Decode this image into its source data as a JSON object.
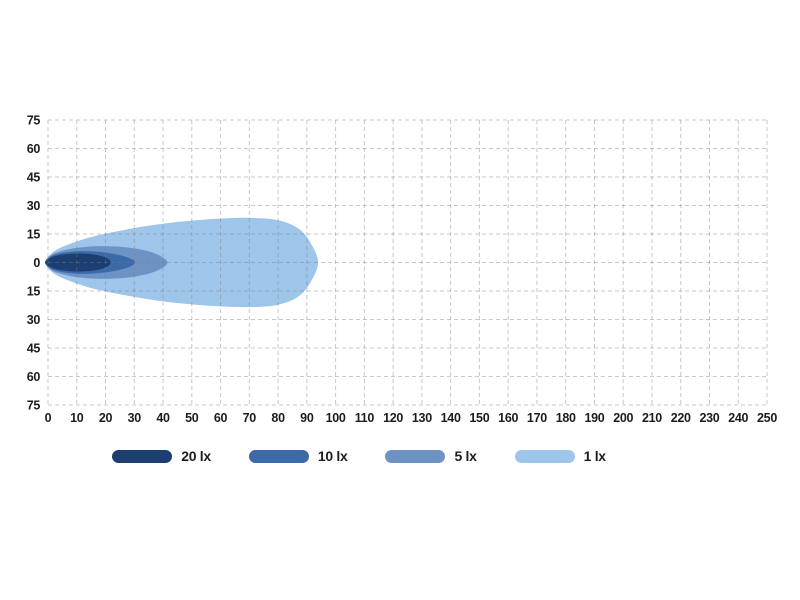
{
  "chart_data": {
    "type": "area",
    "title": "",
    "xlabel": "",
    "ylabel": "",
    "unit": "lx",
    "x_range": [
      0,
      250
    ],
    "y_range": [
      -75,
      75
    ],
    "x_ticks": [
      0,
      10,
      20,
      30,
      40,
      50,
      60,
      70,
      80,
      90,
      100,
      110,
      120,
      130,
      140,
      150,
      160,
      170,
      180,
      190,
      200,
      210,
      220,
      230,
      240,
      250
    ],
    "y_tick_values": [
      75,
      60,
      45,
      30,
      15,
      0,
      -15,
      -30,
      -45,
      -60,
      -75
    ],
    "y_tick_labels": [
      "75",
      "60",
      "45",
      "30",
      "15",
      "0",
      "15",
      "30",
      "45",
      "60",
      "75"
    ],
    "grid": {
      "on": true,
      "style": "dashed",
      "color_on_white": "#cccccc"
    },
    "legend_position": "bottom",
    "series": [
      {
        "name": "1 lx",
        "value_lx": 1,
        "color": "#9ec5ea",
        "reach_m": 94,
        "max_half_width_m": 23.5,
        "contour": [
          [
            -1,
            0
          ],
          [
            1,
            4.5
          ],
          [
            4,
            7.5
          ],
          [
            8,
            10
          ],
          [
            14,
            13
          ],
          [
            20,
            15.2
          ],
          [
            28,
            17.6
          ],
          [
            36,
            19.6
          ],
          [
            44,
            21.2
          ],
          [
            52,
            22.3
          ],
          [
            60,
            23.1
          ],
          [
            68,
            23.5
          ],
          [
            75,
            23.2
          ],
          [
            80,
            22.2
          ],
          [
            84,
            20.4
          ],
          [
            87.5,
            17.4
          ],
          [
            90,
            13.4
          ],
          [
            92,
            8.4
          ],
          [
            93.4,
            4
          ],
          [
            93.9,
            0
          ]
        ]
      },
      {
        "name": "5 lx",
        "value_lx": 5,
        "color": "#6d93c4",
        "reach_m": 41.5,
        "max_half_width_m": 8.6,
        "contour": [
          [
            -1,
            0
          ],
          [
            1,
            3.8
          ],
          [
            4,
            5.8
          ],
          [
            8,
            7.2
          ],
          [
            12,
            8.0
          ],
          [
            16,
            8.5
          ],
          [
            20,
            8.6
          ],
          [
            25,
            8.3
          ],
          [
            30,
            7.4
          ],
          [
            35,
            5.9
          ],
          [
            38.5,
            3.9
          ],
          [
            40.8,
            1.7
          ],
          [
            41.5,
            0
          ]
        ]
      },
      {
        "name": "10 lx",
        "value_lx": 10,
        "color": "#3c69a7",
        "reach_m": 30.3,
        "max_half_width_m": 6.0,
        "contour": [
          [
            -1,
            0
          ],
          [
            1,
            3.2
          ],
          [
            4,
            4.8
          ],
          [
            8,
            5.7
          ],
          [
            12,
            6.0
          ],
          [
            16,
            5.8
          ],
          [
            20,
            5.2
          ],
          [
            24,
            4.2
          ],
          [
            27.5,
            2.8
          ],
          [
            29.5,
            1.4
          ],
          [
            30.3,
            0
          ]
        ]
      },
      {
        "name": "20 lx",
        "value_lx": 20,
        "color": "#1d3e70",
        "reach_m": 21.8,
        "max_half_width_m": 4.7,
        "contour": [
          [
            -1,
            0
          ],
          [
            1,
            2.6
          ],
          [
            4,
            3.9
          ],
          [
            8,
            4.6
          ],
          [
            12,
            4.7
          ],
          [
            16,
            4.2
          ],
          [
            19,
            3.2
          ],
          [
            21,
            1.8
          ],
          [
            21.8,
            0
          ]
        ]
      }
    ],
    "legend": [
      {
        "label": "20 lx",
        "color": "#1d3e70"
      },
      {
        "label": "10 lx",
        "color": "#3c69a7"
      },
      {
        "label": "5 lx",
        "color": "#6d93c4"
      },
      {
        "label": "1 lx",
        "color": "#9ec5ea"
      }
    ]
  }
}
